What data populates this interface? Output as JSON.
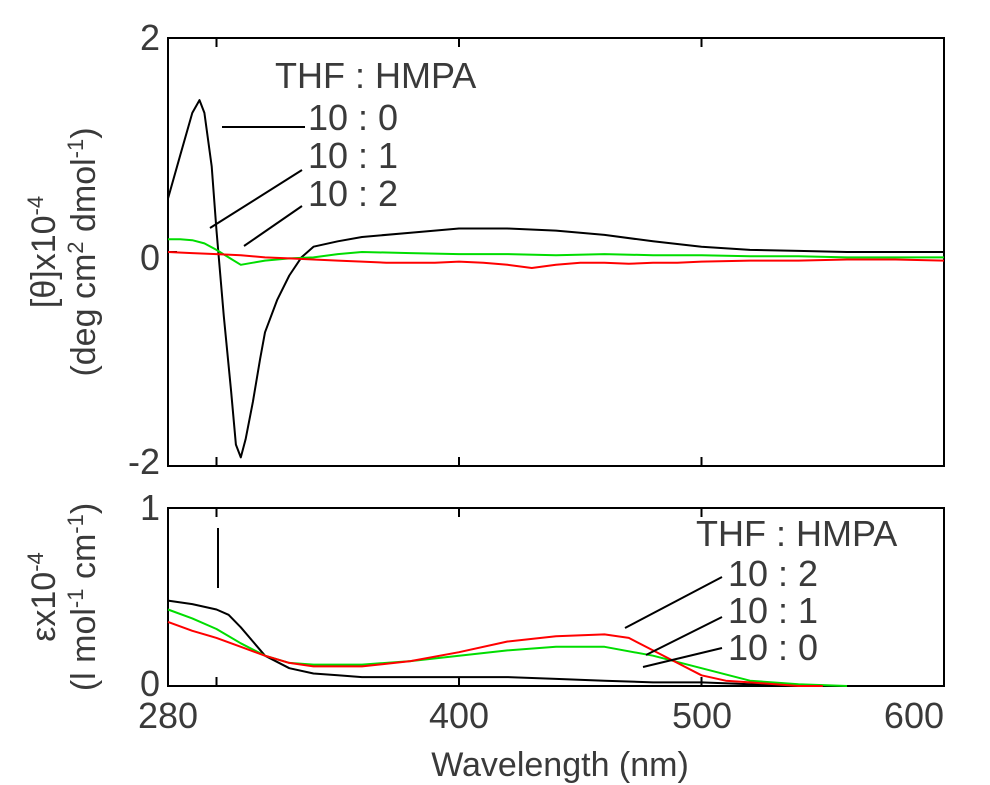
{
  "chart_data": [
    {
      "type": "line",
      "panel": "top",
      "xlim": [
        280,
        600
      ],
      "ylim": [
        -2,
        2
      ],
      "x_ticks": [
        280,
        300,
        400,
        500,
        600
      ],
      "y_ticks": [
        -2,
        0,
        2
      ],
      "y_tick_labels": [
        "-2",
        "0",
        "2"
      ],
      "ylabel_line1": "[θ]x10",
      "ylabel_line1_exp": "-4",
      "ylabel_line2": "(deg cm",
      "ylabel_line2_exp1": "2",
      "ylabel_line2_mid": " dmol",
      "ylabel_line2_exp2": "-1",
      "ylabel_line2_end": ")",
      "legend_header": "THF : HMPA",
      "legend_placement": "top-left",
      "series": [
        {
          "name": "10 : 0",
          "color": "#000000",
          "x": [
            280,
            285,
            290,
            293,
            295,
            298,
            300,
            303,
            306,
            308,
            310,
            312,
            315,
            318,
            320,
            325,
            330,
            335,
            340,
            350,
            360,
            380,
            400,
            420,
            440,
            460,
            480,
            500,
            520,
            540,
            560,
            580,
            600
          ],
          "y": [
            0.5,
            0.9,
            1.3,
            1.42,
            1.3,
            0.8,
            0.2,
            -0.6,
            -1.3,
            -1.8,
            -1.92,
            -1.75,
            -1.4,
            -1.0,
            -0.75,
            -0.45,
            -0.22,
            -0.05,
            0.05,
            0.1,
            0.14,
            0.18,
            0.22,
            0.22,
            0.2,
            0.16,
            0.1,
            0.05,
            0.02,
            0.01,
            0.0,
            0.0,
            0.0
          ]
        },
        {
          "name": "10 : 1",
          "color": "#00dd00",
          "x": [
            280,
            285,
            290,
            295,
            300,
            305,
            310,
            315,
            320,
            330,
            340,
            350,
            360,
            380,
            400,
            420,
            440,
            460,
            480,
            500,
            520,
            540,
            560,
            580,
            600
          ],
          "y": [
            0.12,
            0.12,
            0.11,
            0.08,
            0.02,
            -0.05,
            -0.12,
            -0.1,
            -0.08,
            -0.06,
            -0.05,
            -0.02,
            0.0,
            -0.01,
            -0.02,
            -0.02,
            -0.03,
            -0.02,
            -0.03,
            -0.03,
            -0.04,
            -0.04,
            -0.05,
            -0.05,
            -0.05
          ]
        },
        {
          "name": "10 : 2",
          "color": "#ff0000",
          "x": [
            280,
            290,
            300,
            310,
            320,
            330,
            340,
            350,
            360,
            370,
            380,
            390,
            400,
            410,
            420,
            430,
            440,
            450,
            460,
            470,
            480,
            490,
            500,
            520,
            540,
            560,
            580,
            600
          ],
          "y": [
            0.0,
            -0.01,
            -0.02,
            -0.03,
            -0.05,
            -0.06,
            -0.07,
            -0.08,
            -0.09,
            -0.1,
            -0.1,
            -0.1,
            -0.09,
            -0.1,
            -0.12,
            -0.15,
            -0.12,
            -0.1,
            -0.1,
            -0.11,
            -0.1,
            -0.1,
            -0.09,
            -0.08,
            -0.08,
            -0.07,
            -0.07,
            -0.08
          ]
        }
      ],
      "legend_entries": [
        "10 : 0",
        "10 : 1",
        "10 : 2"
      ]
    },
    {
      "type": "line",
      "panel": "bottom",
      "xlim": [
        280,
        600
      ],
      "ylim": [
        0,
        1
      ],
      "x_ticks": [
        280,
        300,
        400,
        500,
        600
      ],
      "x_tick_labels": [
        "280",
        "",
        "400",
        "500",
        "600"
      ],
      "y_ticks": [
        0,
        1
      ],
      "y_tick_labels": [
        "0",
        "1"
      ],
      "xlabel": "Wavelength (nm)",
      "ylabel_line1": "εx10",
      "ylabel_line1_exp": "-4",
      "ylabel_line2": "(l mol",
      "ylabel_line2_exp1": "-1",
      "ylabel_line2_mid": " cm",
      "ylabel_line2_exp2": "-1",
      "ylabel_line2_end": ")",
      "legend_header": "THF : HMPA",
      "legend_placement": "top-right",
      "series": [
        {
          "name": "10 : 0",
          "color": "#000000",
          "x": [
            280,
            290,
            300,
            305,
            310,
            315,
            320,
            330,
            340,
            350,
            360,
            380,
            400,
            420,
            440,
            460,
            480,
            500,
            520,
            540,
            560,
            600
          ],
          "y": [
            0.48,
            0.46,
            0.43,
            0.4,
            0.33,
            0.25,
            0.17,
            0.1,
            0.07,
            0.06,
            0.05,
            0.05,
            0.05,
            0.05,
            0.04,
            0.03,
            0.02,
            0.02,
            0.01,
            0.0,
            0.0,
            0.0
          ]
        },
        {
          "name": "10 : 1",
          "color": "#00dd00",
          "x": [
            280,
            290,
            300,
            310,
            320,
            330,
            340,
            360,
            380,
            400,
            420,
            440,
            460,
            480,
            500,
            520,
            540,
            560
          ],
          "y": [
            0.43,
            0.38,
            0.32,
            0.24,
            0.17,
            0.13,
            0.12,
            0.12,
            0.14,
            0.17,
            0.2,
            0.22,
            0.22,
            0.17,
            0.1,
            0.03,
            0.01,
            0.0
          ]
        },
        {
          "name": "10 : 2",
          "color": "#ff0000",
          "x": [
            280,
            290,
            300,
            310,
            320,
            330,
            340,
            360,
            380,
            400,
            420,
            440,
            460,
            470,
            480,
            490,
            500,
            510,
            520,
            540,
            550
          ],
          "y": [
            0.36,
            0.31,
            0.27,
            0.22,
            0.17,
            0.13,
            0.11,
            0.11,
            0.14,
            0.19,
            0.25,
            0.28,
            0.29,
            0.27,
            0.2,
            0.13,
            0.06,
            0.03,
            0.02,
            0.0,
            0.0
          ]
        }
      ],
      "legend_entries": [
        "10 : 2",
        "10 : 1",
        "10 : 0"
      ]
    }
  ]
}
